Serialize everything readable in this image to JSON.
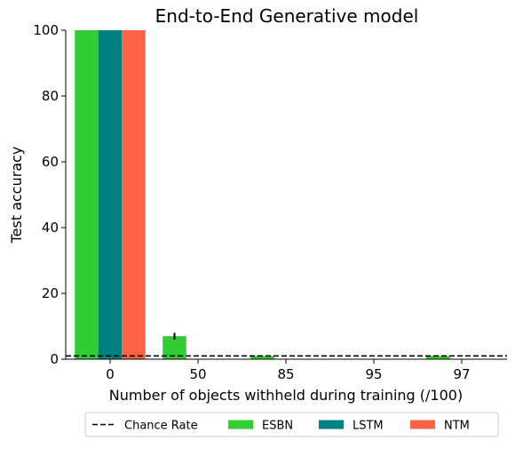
{
  "chart_data": {
    "type": "bar",
    "title": "End-to-End Generative model",
    "xlabel": "Number of objects withheld during training (/100)",
    "ylabel": "Test accuracy",
    "ylim": [
      0,
      100
    ],
    "yticks": [
      0,
      20,
      40,
      60,
      80,
      100
    ],
    "categories": [
      "0",
      "50",
      "85",
      "95",
      "97"
    ],
    "series": [
      {
        "name": "ESBN",
        "color": "#32CD32",
        "values": [
          100,
          7,
          1,
          0,
          1
        ],
        "errors": [
          0,
          1,
          0,
          0,
          0
        ]
      },
      {
        "name": "LSTM",
        "color": "#008080",
        "values": [
          100,
          0,
          0,
          0,
          0
        ],
        "errors": [
          0,
          0,
          0,
          0,
          0
        ]
      },
      {
        "name": "NTM",
        "color": "#FF6347",
        "values": [
          100,
          0,
          0,
          0,
          0
        ],
        "errors": [
          0,
          0,
          0,
          0,
          0
        ]
      }
    ],
    "reference_line": {
      "name": "Chance Rate",
      "value": 1,
      "style": "dashed",
      "color": "#000000"
    },
    "legend": {
      "placement": "bottom-center",
      "entries": [
        "Chance Rate",
        "ESBN",
        "LSTM",
        "NTM"
      ]
    },
    "grid": false
  }
}
